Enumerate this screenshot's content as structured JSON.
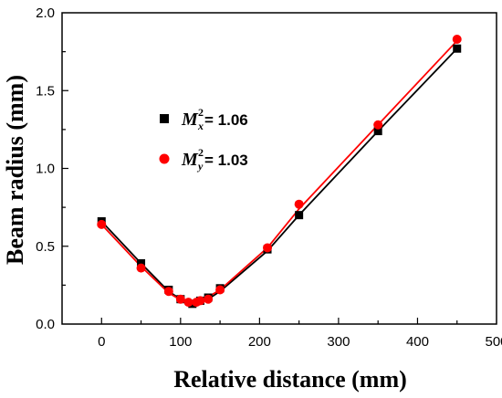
{
  "chart_data": {
    "type": "scatter",
    "xlabel": "Relative distance (mm)",
    "ylabel": "Beam radius (mm)",
    "xlim": [
      -50,
      500
    ],
    "ylim": [
      0.0,
      2.0
    ],
    "xticks": [
      0,
      100,
      200,
      300,
      400,
      500
    ],
    "yticks": [
      0.0,
      0.5,
      1.0,
      1.5,
      2.0
    ],
    "xtick_labels": [
      "0",
      "100",
      "200",
      "300",
      "400",
      "500"
    ],
    "ytick_labels": [
      "0.0",
      "0.5",
      "1.0",
      "1.5",
      "2.0"
    ],
    "grid": false,
    "legend_position": "left-middle",
    "series": [
      {
        "legend_symbol": "M",
        "legend_subscript": "x",
        "legend_superscript": "2",
        "legend_value": " = 1.06",
        "color": "#000000",
        "marker": "square",
        "x": [
          0,
          50,
          85,
          100,
          115,
          125,
          135,
          150,
          210,
          250,
          350,
          450
        ],
        "y": [
          0.66,
          0.39,
          0.22,
          0.16,
          0.13,
          0.15,
          0.17,
          0.23,
          0.48,
          0.7,
          1.24,
          1.77
        ],
        "fit_x": [
          0,
          50,
          85,
          100,
          117,
          135,
          150,
          210,
          250,
          350,
          450
        ],
        "fit_y": [
          0.66,
          0.39,
          0.21,
          0.16,
          0.13,
          0.16,
          0.21,
          0.47,
          0.7,
          1.24,
          1.77
        ]
      },
      {
        "legend_symbol": "M",
        "legend_subscript": "y",
        "legend_superscript": "2",
        "legend_value": " = 1.03",
        "color": "#ff0000",
        "marker": "circle",
        "x": [
          0,
          50,
          85,
          100,
          110,
          120,
          125,
          135,
          150,
          210,
          250,
          350,
          450
        ],
        "y": [
          0.64,
          0.36,
          0.21,
          0.16,
          0.14,
          0.14,
          0.15,
          0.16,
          0.22,
          0.49,
          0.77,
          1.28,
          1.83
        ],
        "fit_x": [
          0,
          50,
          85,
          100,
          115,
          130,
          150,
          210,
          250,
          350,
          450
        ],
        "fit_y": [
          0.64,
          0.37,
          0.2,
          0.155,
          0.135,
          0.16,
          0.22,
          0.49,
          0.74,
          1.28,
          1.82
        ]
      }
    ]
  }
}
